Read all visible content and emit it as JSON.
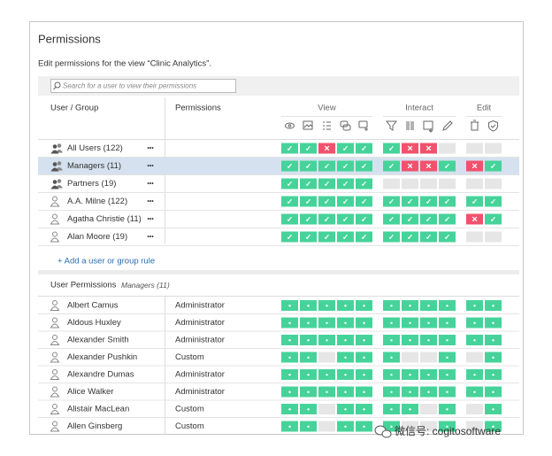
{
  "title": "Permissions",
  "subtitle": "Edit permissions for the view “Clinic Analytics”.",
  "search_placeholder": "Search for a user to view their permissions",
  "table": {
    "headers": [
      "User / Group",
      "Permissions"
    ],
    "column_groups": [
      "View",
      "Interact",
      "Edit"
    ],
    "row_menu": "•••",
    "selected_group": 1,
    "cell_colors": {
      "✓": "#46d39a",
      "✕": "#f2516d",
      "•": "#46d39a"
    },
    "empty_color": "#e6e6e6",
    "groups": [
      {
        "name": "All Users (122)",
        "cells": [
          [
            "✓",
            "✓",
            "✕",
            "✓",
            "✓"
          ],
          [
            "✓",
            "✕",
            "✕",
            null
          ],
          [
            null,
            null
          ]
        ]
      },
      {
        "name": "Managers (11)",
        "cells": [
          [
            "✓",
            "✓",
            "✓",
            "✓",
            "✓"
          ],
          [
            "✓",
            "✕",
            "✕",
            "✓"
          ],
          [
            "✕",
            "✓"
          ]
        ]
      },
      {
        "name": "Partners (19)",
        "cells": [
          [
            "✓",
            "✓",
            "✓",
            "✓",
            "✓"
          ],
          [
            null,
            null,
            null,
            null
          ],
          [
            null,
            null
          ]
        ]
      }
    ],
    "users": [
      {
        "name": "A.A. Milne (122)",
        "cells": [
          [
            "✓",
            "✓",
            "✓",
            "✓",
            "✓"
          ],
          [
            "✓",
            "✓",
            "✓",
            "✓"
          ],
          [
            "✓",
            "✓"
          ]
        ]
      },
      {
        "name": "Agatha Christie (11)",
        "cells": [
          [
            "✓",
            "✓",
            "✓",
            "✓",
            "✓"
          ],
          [
            "✓",
            "✓",
            "✓",
            "✓"
          ],
          [
            "✕",
            "✓"
          ]
        ]
      },
      {
        "name": "Alan Moore (19)",
        "cells": [
          [
            "✓",
            "✓",
            "✓",
            "✓",
            "✓"
          ],
          [
            "✓",
            "✓",
            "✓",
            "✓"
          ],
          [
            null,
            null
          ]
        ]
      }
    ]
  },
  "add_rule": "+ Add a user or group rule",
  "user_permissions": {
    "title": "User Permissions",
    "group": "Managers (11)",
    "rows": [
      {
        "name": "Albert Camus",
        "permission": "Administrator",
        "cells": [
          [
            "•",
            "•",
            "•",
            "•",
            "•"
          ],
          [
            "•",
            "•",
            "•",
            "•"
          ],
          [
            "•",
            "•"
          ]
        ]
      },
      {
        "name": "Aldous Huxley",
        "permission": "Administrator",
        "cells": [
          [
            "•",
            "•",
            "•",
            "•",
            "•"
          ],
          [
            "•",
            "•",
            "•",
            "•"
          ],
          [
            "•",
            "•"
          ]
        ]
      },
      {
        "name": "Alexander Smith",
        "permission": "Administrator",
        "cells": [
          [
            "•",
            "•",
            "•",
            "•",
            "•"
          ],
          [
            "•",
            "•",
            "•",
            "•"
          ],
          [
            "•",
            "•"
          ]
        ]
      },
      {
        "name": "Alexander Pushkin",
        "permission": "Custom",
        "cells": [
          [
            "•",
            "•",
            null,
            "•",
            "•"
          ],
          [
            "•",
            null,
            null,
            "•"
          ],
          [
            null,
            "•"
          ]
        ]
      },
      {
        "name": "Alexandre Dumas",
        "permission": "Administrator",
        "cells": [
          [
            "•",
            "•",
            "•",
            "•",
            "•"
          ],
          [
            "•",
            "•",
            "•",
            "•"
          ],
          [
            "•",
            "•"
          ]
        ]
      },
      {
        "name": "Alice Walker",
        "permission": "Administrator",
        "cells": [
          [
            "•",
            "•",
            "•",
            "•",
            "•"
          ],
          [
            "•",
            "•",
            "•",
            "•"
          ],
          [
            "•",
            "•"
          ]
        ]
      },
      {
        "name": "Alistair MacLean",
        "permission": "Custom",
        "cells": [
          [
            "•",
            "•",
            null,
            "•",
            "•"
          ],
          [
            "•",
            "•",
            null,
            "•"
          ],
          [
            null,
            "•"
          ]
        ]
      },
      {
        "name": "Allen Ginsberg",
        "permission": "Custom",
        "cells": [
          [
            "•",
            "•",
            null,
            "•",
            "•"
          ],
          [
            "•",
            null,
            null,
            "•"
          ],
          [
            null,
            "•"
          ]
        ]
      }
    ]
  },
  "watermark": "微信号: cogitosoftware"
}
